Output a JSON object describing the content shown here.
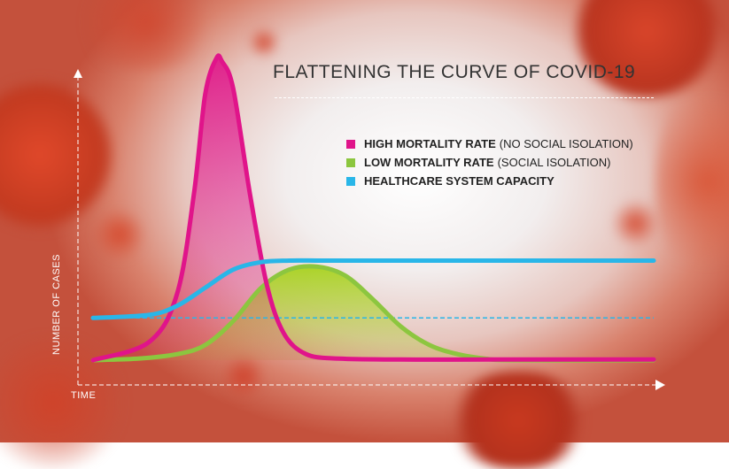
{
  "title": "FLATTENING THE CURVE OF COVID-19",
  "legend": [
    {
      "label": "HIGH MORTALITY RATE",
      "note": "(NO SOCIAL ISOLATION)",
      "color": "#e0148a"
    },
    {
      "label": "LOW MORTALITY RATE",
      "note": "(SOCIAL ISOLATION)",
      "color": "#8cc63f"
    },
    {
      "label": "HEALTHCARE SYSTEM CAPACITY",
      "note": "",
      "color": "#29b6e8"
    }
  ],
  "colors": {
    "background_center": "#ffffff",
    "background_edge": "#c4513c",
    "axis": "#ffffff",
    "virus": "#c8361f"
  },
  "chart_data": {
    "type": "area",
    "title": "FLATTENING THE CURVE OF COVID-19",
    "xlabel": "TIME",
    "ylabel": "NUMBER OF CASES",
    "x_ticks_shown": false,
    "y_ticks_shown": false,
    "xlim": [
      0,
      100
    ],
    "ylim": [
      0,
      100
    ],
    "grid": false,
    "legend_position": "top-right",
    "series": [
      {
        "name": "HIGH MORTALITY RATE",
        "color": "#e0148a",
        "x": [
          0,
          10,
          15,
          18,
          20,
          22,
          23,
          25,
          28,
          31,
          34,
          38,
          44,
          55,
          70,
          100
        ],
        "y": [
          0,
          6,
          22,
          55,
          88,
          100,
          99,
          90,
          55,
          25,
          9,
          2,
          0.5,
          0.2,
          0.2,
          0.2
        ]
      },
      {
        "name": "LOW MORTALITY RATE",
        "color": "#8cc63f",
        "x": [
          0,
          8,
          15,
          20,
          25,
          30,
          35,
          40,
          45,
          50,
          55,
          60,
          65,
          70,
          75,
          100
        ],
        "y": [
          0,
          0.5,
          2,
          5,
          13,
          24,
          30,
          31,
          28,
          20,
          11,
          5,
          2,
          0.5,
          0,
          0
        ]
      },
      {
        "name": "HEALTHCARE SYSTEM CAPACITY",
        "color": "#29b6e8",
        "x": [
          0,
          10,
          15,
          20,
          25,
          30,
          35,
          40,
          45,
          50,
          60,
          70,
          80,
          90,
          100
        ],
        "y": [
          14,
          15,
          18,
          24,
          30,
          32.5,
          33,
          33,
          33,
          33,
          33,
          33,
          33,
          33,
          33
        ]
      }
    ],
    "reference_line": {
      "y": 14,
      "style": "dashed",
      "color": "#29b6e8"
    }
  }
}
